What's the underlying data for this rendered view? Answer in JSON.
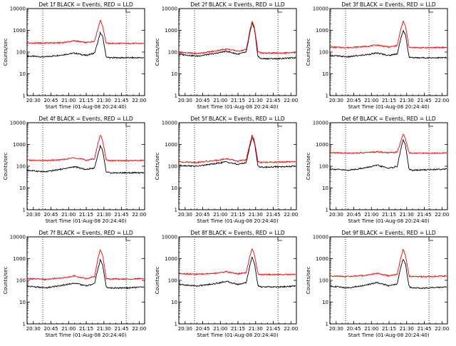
{
  "colors": {
    "events": "#000000",
    "lld": "#ff0000",
    "axis": "#000000"
  },
  "chart_data": [
    {
      "type": "line",
      "title": "Det 1f BLACK = Events, RED = LLD",
      "xlabel": "Start Time (01-Aug-08 20:24:40)",
      "ylabel": "Counts/sec",
      "xticks": [
        "20:30",
        "20:45",
        "21:00",
        "21:15",
        "21:30",
        "21:45",
        "22:00"
      ],
      "yticks": [
        "1",
        "10",
        "100",
        "1000",
        "10000"
      ],
      "ylim": [
        1,
        10000
      ],
      "yscale": "log",
      "xlim": [
        "20:24:40",
        "22:04:40"
      ],
      "vlines": [
        "20:38",
        "21:49"
      ],
      "series": [
        {
          "name": "Events",
          "x": [
            "20:25",
            "20:40",
            "20:55",
            "21:05",
            "21:15",
            "21:22",
            "21:25",
            "21:27",
            "21:29",
            "21:32",
            "21:35",
            "21:50",
            "22:04"
          ],
          "y": [
            65,
            60,
            75,
            90,
            70,
            90,
            300,
            800,
            500,
            60,
            55,
            55,
            55
          ]
        },
        {
          "name": "LLD",
          "x": [
            "20:25",
            "20:40",
            "20:55",
            "21:05",
            "21:15",
            "21:22",
            "21:25",
            "21:27",
            "21:29",
            "21:32",
            "21:35",
            "21:50",
            "22:04"
          ],
          "y": [
            260,
            260,
            270,
            330,
            270,
            320,
            1200,
            3000,
            1500,
            260,
            250,
            250,
            250
          ]
        }
      ]
    },
    {
      "type": "line",
      "title": "Det 2f BLACK = Events, RED = LLD",
      "xlabel": "Start Time (01-Aug-08 20:24:40)",
      "ylabel": "Counts/sec",
      "xticks": [
        "20:30",
        "20:45",
        "21:00",
        "21:15",
        "21:30",
        "21:45",
        "22:00"
      ],
      "yticks": [
        "1",
        "10",
        "100",
        "1000",
        "10000"
      ],
      "ylim": [
        1,
        10000
      ],
      "yscale": "log",
      "xlim": [
        "20:24:40",
        "22:04:40"
      ],
      "vlines": [
        "20:38",
        "21:49"
      ],
      "series": [
        {
          "name": "Events",
          "x": [
            "20:25",
            "20:40",
            "20:55",
            "21:05",
            "21:15",
            "21:22",
            "21:25",
            "21:27",
            "21:29",
            "21:32",
            "21:35",
            "21:50",
            "22:04"
          ],
          "y": [
            80,
            65,
            85,
            110,
            80,
            100,
            700,
            2200,
            1200,
            60,
            50,
            50,
            55
          ]
        },
        {
          "name": "LLD",
          "x": [
            "20:25",
            "20:40",
            "20:55",
            "21:05",
            "21:15",
            "21:22",
            "21:25",
            "21:27",
            "21:29",
            "21:32",
            "21:35",
            "21:50",
            "22:04"
          ],
          "y": [
            100,
            85,
            110,
            140,
            110,
            130,
            900,
            2600,
            1400,
            100,
            90,
            90,
            95
          ]
        }
      ]
    },
    {
      "type": "line",
      "title": "Det 3f BLACK = Events, RED = LLD",
      "xlabel": "Start Time (01-Aug-08 20:24:40)",
      "ylabel": "Counts/sec",
      "xticks": [
        "20:30",
        "20:45",
        "21:00",
        "21:15",
        "21:30",
        "21:45",
        "22:00"
      ],
      "yticks": [
        "1",
        "10",
        "100",
        "1000",
        "10000"
      ],
      "ylim": [
        1,
        10000
      ],
      "yscale": "log",
      "xlim": [
        "20:24:40",
        "22:04:40"
      ],
      "vlines": [
        "20:38",
        "21:49"
      ],
      "series": [
        {
          "name": "Events",
          "x": [
            "20:25",
            "20:40",
            "20:55",
            "21:05",
            "21:15",
            "21:22",
            "21:25",
            "21:27",
            "21:29",
            "21:32",
            "21:35",
            "21:50",
            "22:04"
          ],
          "y": [
            70,
            60,
            75,
            90,
            70,
            85,
            400,
            1000,
            600,
            60,
            55,
            55,
            55
          ]
        },
        {
          "name": "LLD",
          "x": [
            "20:25",
            "20:40",
            "20:55",
            "21:05",
            "21:15",
            "21:22",
            "21:25",
            "21:27",
            "21:29",
            "21:32",
            "21:35",
            "21:50",
            "22:04"
          ],
          "y": [
            170,
            160,
            180,
            210,
            170,
            200,
            1100,
            2700,
            1500,
            170,
            160,
            160,
            165
          ]
        }
      ]
    },
    {
      "type": "line",
      "title": "Det 4f BLACK = Events, RED = LLD",
      "xlabel": "Start Time (01-Aug-08 20:24:40)",
      "ylabel": "Counts/sec",
      "xticks": [
        "20:30",
        "20:45",
        "21:00",
        "21:15",
        "21:30",
        "21:45",
        "22:00"
      ],
      "yticks": [
        "1",
        "10",
        "100",
        "1000",
        "10000"
      ],
      "ylim": [
        1,
        10000
      ],
      "yscale": "log",
      "xlim": [
        "20:24:40",
        "22:04:40"
      ],
      "vlines": [
        "20:38",
        "21:49"
      ],
      "series": [
        {
          "name": "Events",
          "x": [
            "20:25",
            "20:40",
            "20:55",
            "21:05",
            "21:15",
            "21:22",
            "21:25",
            "21:27",
            "21:29",
            "21:32",
            "21:35",
            "21:50",
            "22:04"
          ],
          "y": [
            65,
            55,
            75,
            95,
            70,
            85,
            350,
            900,
            500,
            55,
            50,
            50,
            50
          ]
        },
        {
          "name": "LLD",
          "x": [
            "20:25",
            "20:40",
            "20:55",
            "21:05",
            "21:15",
            "21:22",
            "21:25",
            "21:27",
            "21:29",
            "21:32",
            "21:35",
            "21:50",
            "22:04"
          ],
          "y": [
            190,
            180,
            200,
            250,
            190,
            220,
            1100,
            2800,
            1500,
            190,
            180,
            180,
            185
          ]
        }
      ]
    },
    {
      "type": "line",
      "title": "Det 5f BLACK = Events, RED = LLD",
      "xlabel": "Start Time (01-Aug-08 20:24:40)",
      "ylabel": "Counts/sec",
      "xticks": [
        "20:30",
        "20:45",
        "21:00",
        "21:15",
        "21:30",
        "21:45",
        "22:00"
      ],
      "yticks": [
        "1",
        "10",
        "100",
        "1000",
        "10000"
      ],
      "ylim": [
        1,
        10000
      ],
      "yscale": "log",
      "xlim": [
        "20:24:40",
        "22:04:40"
      ],
      "vlines": [
        "20:38",
        "21:49"
      ],
      "series": [
        {
          "name": "Events",
          "x": [
            "20:25",
            "20:40",
            "20:55",
            "21:05",
            "21:15",
            "21:22",
            "21:25",
            "21:27",
            "21:29",
            "21:32",
            "21:35",
            "21:50",
            "22:04"
          ],
          "y": [
            110,
            100,
            130,
            160,
            120,
            150,
            800,
            2200,
            1200,
            100,
            90,
            95,
            100
          ]
        },
        {
          "name": "LLD",
          "x": [
            "20:25",
            "20:40",
            "20:55",
            "21:05",
            "21:15",
            "21:22",
            "21:25",
            "21:27",
            "21:29",
            "21:32",
            "21:35",
            "21:50",
            "22:04"
          ],
          "y": [
            160,
            150,
            180,
            220,
            170,
            200,
            1000,
            2800,
            1400,
            160,
            150,
            155,
            160
          ]
        }
      ]
    },
    {
      "type": "line",
      "title": "Det 6f BLACK = Events, RED = LLD",
      "xlabel": "Start Time (01-Aug-08 20:24:40)",
      "ylabel": "Counts/sec",
      "xticks": [
        "20:30",
        "20:45",
        "21:00",
        "21:15",
        "21:30",
        "21:45",
        "22:00"
      ],
      "yticks": [
        "1",
        "10",
        "100",
        "1000",
        "10000"
      ],
      "ylim": [
        1,
        10000
      ],
      "yscale": "log",
      "xlim": [
        "20:24:40",
        "22:04:40"
      ],
      "vlines": [
        "20:38",
        "21:49"
      ],
      "series": [
        {
          "name": "Events",
          "x": [
            "20:25",
            "20:40",
            "20:55",
            "21:05",
            "21:15",
            "21:22",
            "21:25",
            "21:27",
            "21:29",
            "21:32",
            "21:35",
            "21:50",
            "22:04"
          ],
          "y": [
            75,
            65,
            85,
            110,
            80,
            100,
            600,
            1700,
            900,
            70,
            65,
            70,
            75
          ]
        },
        {
          "name": "LLD",
          "x": [
            "20:25",
            "20:40",
            "20:55",
            "21:05",
            "21:15",
            "21:22",
            "21:25",
            "21:27",
            "21:29",
            "21:32",
            "21:35",
            "21:50",
            "22:04"
          ],
          "y": [
            420,
            400,
            420,
            460,
            420,
            450,
            1400,
            3200,
            1800,
            420,
            400,
            400,
            410
          ]
        }
      ]
    },
    {
      "type": "line",
      "title": "Det 7f BLACK = Events, RED = LLD",
      "xlabel": "Start Time (01-Aug-08 20:24:40)",
      "ylabel": "Counts/sec",
      "xticks": [
        "20:30",
        "20:45",
        "21:00",
        "21:15",
        "21:30",
        "21:45",
        "22:00"
      ],
      "yticks": [
        "1",
        "10",
        "100",
        "1000",
        "10000"
      ],
      "ylim": [
        1,
        10000
      ],
      "yscale": "log",
      "xlim": [
        "20:24:40",
        "22:04:40"
      ],
      "vlines": [
        "20:38",
        "21:49"
      ],
      "series": [
        {
          "name": "Events",
          "x": [
            "20:25",
            "20:40",
            "20:55",
            "21:05",
            "21:15",
            "21:22",
            "21:25",
            "21:27",
            "21:29",
            "21:32",
            "21:35",
            "21:50",
            "22:04"
          ],
          "y": [
            55,
            45,
            60,
            75,
            55,
            70,
            350,
            900,
            500,
            50,
            45,
            45,
            50
          ]
        },
        {
          "name": "LLD",
          "x": [
            "20:25",
            "20:40",
            "20:55",
            "21:05",
            "21:15",
            "21:22",
            "21:25",
            "21:27",
            "21:29",
            "21:32",
            "21:35",
            "21:50",
            "22:04"
          ],
          "y": [
            120,
            110,
            130,
            160,
            120,
            150,
            1000,
            2600,
            1400,
            120,
            115,
            115,
            120
          ]
        }
      ]
    },
    {
      "type": "line",
      "title": "Det 8f BLACK = Events, RED = LLD",
      "xlabel": "Start Time (01-Aug-08 20:24:40)",
      "ylabel": "Counts/sec",
      "xticks": [
        "20:30",
        "20:45",
        "21:00",
        "21:15",
        "21:30",
        "21:45",
        "22:00"
      ],
      "yticks": [
        "1",
        "10",
        "100",
        "1000",
        "10000"
      ],
      "ylim": [
        1,
        10000
      ],
      "yscale": "log",
      "xlim": [
        "20:24:40",
        "22:04:40"
      ],
      "vlines": [
        "20:38",
        "21:49"
      ],
      "series": [
        {
          "name": "Events",
          "x": [
            "20:25",
            "20:40",
            "20:55",
            "21:05",
            "21:15",
            "21:22",
            "21:25",
            "21:27",
            "21:29",
            "21:32",
            "21:35",
            "21:50",
            "22:04"
          ],
          "y": [
            65,
            55,
            70,
            90,
            65,
            80,
            450,
            1200,
            600,
            55,
            50,
            50,
            55
          ]
        },
        {
          "name": "LLD",
          "x": [
            "20:25",
            "20:40",
            "20:55",
            "21:05",
            "21:15",
            "21:22",
            "21:25",
            "21:27",
            "21:29",
            "21:32",
            "21:35",
            "21:50",
            "22:04"
          ],
          "y": [
            210,
            190,
            210,
            250,
            200,
            230,
            1200,
            3000,
            1500,
            200,
            185,
            185,
            190
          ]
        }
      ]
    },
    {
      "type": "line",
      "title": "Det 9f BLACK = Events, RED = LLD",
      "xlabel": "Start Time (01-Aug-08 20:24:40)",
      "ylabel": "Counts/sec",
      "xticks": [
        "20:30",
        "20:45",
        "21:00",
        "21:15",
        "21:30",
        "21:45",
        "22:00"
      ],
      "yticks": [
        "1",
        "10",
        "100",
        "1000",
        "10000"
      ],
      "ylim": [
        1,
        10000
      ],
      "yscale": "log",
      "xlim": [
        "20:24:40",
        "22:04:40"
      ],
      "vlines": [
        "20:38",
        "21:49"
      ],
      "series": [
        {
          "name": "Events",
          "x": [
            "20:25",
            "20:40",
            "20:55",
            "21:05",
            "21:15",
            "21:22",
            "21:25",
            "21:27",
            "21:29",
            "21:32",
            "21:35",
            "21:50",
            "22:04"
          ],
          "y": [
            55,
            45,
            60,
            80,
            55,
            70,
            400,
            1000,
            550,
            50,
            45,
            45,
            50
          ]
        },
        {
          "name": "LLD",
          "x": [
            "20:25",
            "20:40",
            "20:55",
            "21:05",
            "21:15",
            "21:22",
            "21:25",
            "21:27",
            "21:29",
            "21:32",
            "21:35",
            "21:50",
            "22:04"
          ],
          "y": [
            160,
            150,
            170,
            210,
            160,
            190,
            1100,
            2700,
            1400,
            160,
            150,
            150,
            160
          ]
        }
      ]
    }
  ]
}
